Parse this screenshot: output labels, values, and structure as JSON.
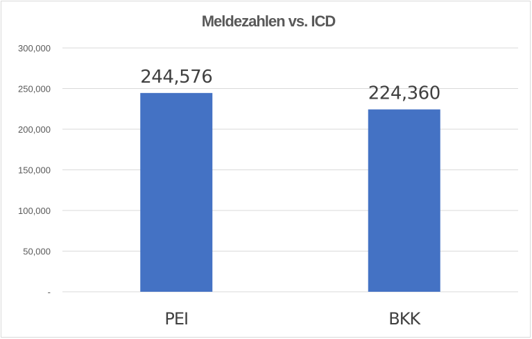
{
  "chart_data": {
    "type": "bar",
    "title": "Meldezahlen vs. ICD",
    "categories": [
      "PEI",
      "BKK"
    ],
    "values": [
      244576,
      224360
    ],
    "value_labels": [
      "244,576",
      "224,360"
    ],
    "ylim": [
      0,
      300000
    ],
    "yticks": [
      {
        "value": 0,
        "label": "-"
      },
      {
        "value": 50000,
        "label": "50,000"
      },
      {
        "value": 100000,
        "label": "100,000"
      },
      {
        "value": 150000,
        "label": "150,000"
      },
      {
        "value": 200000,
        "label": "200,000"
      },
      {
        "value": 250000,
        "label": "250,000"
      },
      {
        "value": 300000,
        "label": "300,000"
      }
    ],
    "grid": true,
    "bar_color": "#4472c4"
  }
}
